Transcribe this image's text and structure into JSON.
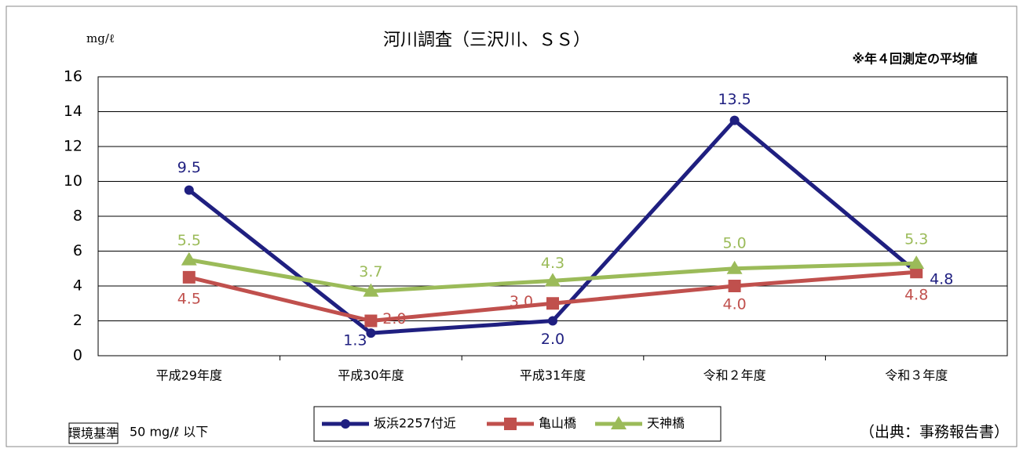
{
  "chart_data": {
    "type": "line",
    "title": "河川調査（三沢川、ＳＳ）",
    "y_unit": "mg/ℓ",
    "note": "※年４回測定の平均値",
    "standard_label": "環境基準",
    "standard_text": "50 mg/ℓ 以下",
    "source": "（出典：事務報告書）",
    "categories": [
      "平成29年度",
      "平成30年度",
      "平成31年度",
      "令和２年度",
      "令和３年度"
    ],
    "series": [
      {
        "name": "坂浜2257付近",
        "color": "#1f1f80",
        "marker": "circle",
        "values": [
          9.5,
          1.3,
          2.0,
          13.5,
          4.8
        ],
        "value_labels": [
          "9.5",
          "1.3",
          "2.0",
          "13.5",
          "4.8"
        ]
      },
      {
        "name": "亀山橋",
        "color": "#c0504d",
        "marker": "square",
        "values": [
          4.5,
          2.0,
          3.0,
          4.0,
          4.8
        ],
        "value_labels": [
          "4.5",
          "2.0",
          "3.0",
          "4.0",
          "4.8"
        ]
      },
      {
        "name": "天神橋",
        "color": "#9bbb59",
        "marker": "triangle",
        "values": [
          5.5,
          3.7,
          4.3,
          5.0,
          5.3
        ],
        "value_labels": [
          "5.5",
          "3.7",
          "4.3",
          "5.0",
          "5.3"
        ]
      }
    ],
    "ylim": [
      0,
      16
    ],
    "yticks": [
      0,
      2,
      4,
      6,
      8,
      10,
      12,
      14,
      16
    ],
    "grid": true,
    "legend": "bottom"
  }
}
